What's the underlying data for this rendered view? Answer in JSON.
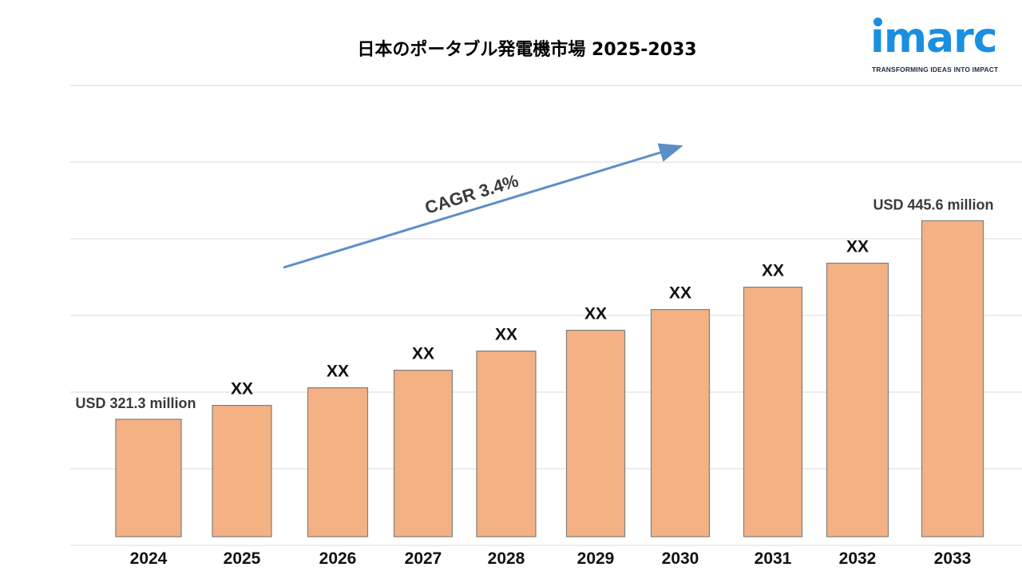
{
  "chart_data": {
    "type": "bar",
    "title": "日本のポータブル発電機市場  2025-2033",
    "categories": [
      "2024",
      "2025",
      "2026",
      "2027",
      "2028",
      "2029",
      "2030",
      "2031",
      "2032",
      "2033"
    ],
    "values": [
      321.3,
      330.0,
      341.0,
      352.0,
      364.0,
      377.0,
      390.0,
      404.0,
      419.0,
      445.6
    ],
    "value_labels": [
      "USD 321.3 million",
      "XX",
      "XX",
      "XX",
      "XX",
      "XX",
      "XX",
      "XX",
      "XX",
      "USD 445.6 million"
    ],
    "xlabel": "",
    "ylabel": "",
    "grid": true,
    "annotation": "CAGR 3.4%",
    "bar_color": "#f4b183",
    "bar_edge_color": "#7f7f7f"
  },
  "logo": {
    "word": "ımarc",
    "tagline": "TRANSFORMING IDEAS INTO IMPACT",
    "color": "#1a8fe0"
  },
  "arrow_color": "#5b8fc7"
}
